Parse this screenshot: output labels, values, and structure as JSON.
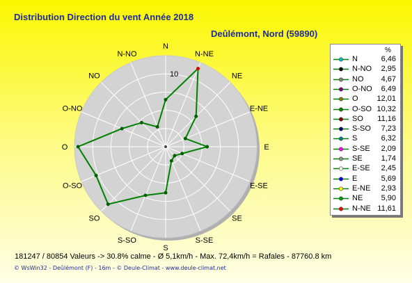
{
  "header": {
    "title": "Distribution Direction du vent   Année 2018",
    "station": "Deûlémont, Nord (59890)"
  },
  "colors": {
    "series": "#008000",
    "disc": "#d3d3d3",
    "peak_marker": "#e00000"
  },
  "chart_data": {
    "type": "radar",
    "title": "Distribution Direction du vent   Année 2018",
    "unit": "%",
    "rmax": 12.5,
    "ring_label": "10",
    "grid": true,
    "legend_position": "right",
    "directions": [
      "N",
      "N-NE",
      "NE",
      "E-NE",
      "E",
      "E-SE",
      "SE",
      "S-SE",
      "S",
      "S-SO",
      "SO",
      "O-SO",
      "O",
      "O-NO",
      "NO",
      "N-NO"
    ],
    "values": [
      6.46,
      11.61,
      5.9,
      2.93,
      5.69,
      2.45,
      1.74,
      2.09,
      6.32,
      7.23,
      11.16,
      10.32,
      12.01,
      6.49,
      4.67,
      2.95
    ]
  },
  "legend": {
    "unit_header": "%",
    "items": [
      {
        "label": "N",
        "value": "6,46",
        "color": "#00c0c0"
      },
      {
        "label": "N-NO",
        "value": "2,95",
        "color": "#000000"
      },
      {
        "label": "NO",
        "value": "4,67",
        "color": "#808080"
      },
      {
        "label": "O-NO",
        "value": "6,49",
        "color": "#800080"
      },
      {
        "label": "O",
        "value": "12,01",
        "color": "#808000"
      },
      {
        "label": "O-SO",
        "value": "10,32",
        "color": "#008000"
      },
      {
        "label": "SO",
        "value": "11,16",
        "color": "#800000"
      },
      {
        "label": "S-SO",
        "value": "7,23",
        "color": "#000080"
      },
      {
        "label": "S",
        "value": "6,32",
        "color": "#008080"
      },
      {
        "label": "S-SE",
        "value": "2,09",
        "color": "#ff00ff"
      },
      {
        "label": "SE",
        "value": "1,74",
        "color": "#909090"
      },
      {
        "label": "E-SE",
        "value": "2,45",
        "color": "#ffffff"
      },
      {
        "label": "E",
        "value": "5,69",
        "color": "#0000ff"
      },
      {
        "label": "E-NE",
        "value": "2,93",
        "color": "#ffff00"
      },
      {
        "label": "NE",
        "value": "5,90",
        "color": "#00a000"
      },
      {
        "label": "N-NE",
        "value": "11,61",
        "color": "#ff0000"
      }
    ]
  },
  "footer": {
    "stats": "181247 / 80854 Valeurs  -> 30.8% calme   -  Ø 5,1km/h  -  Max. 72,4km/h = Rafales   -   87760.8 km",
    "credit_1": "WsWin32",
    "credit_2": "Deûlémont (F) - 16m",
    "credit_3": "Deule-Climat",
    "credit_4": "www.deule-climat.net"
  }
}
